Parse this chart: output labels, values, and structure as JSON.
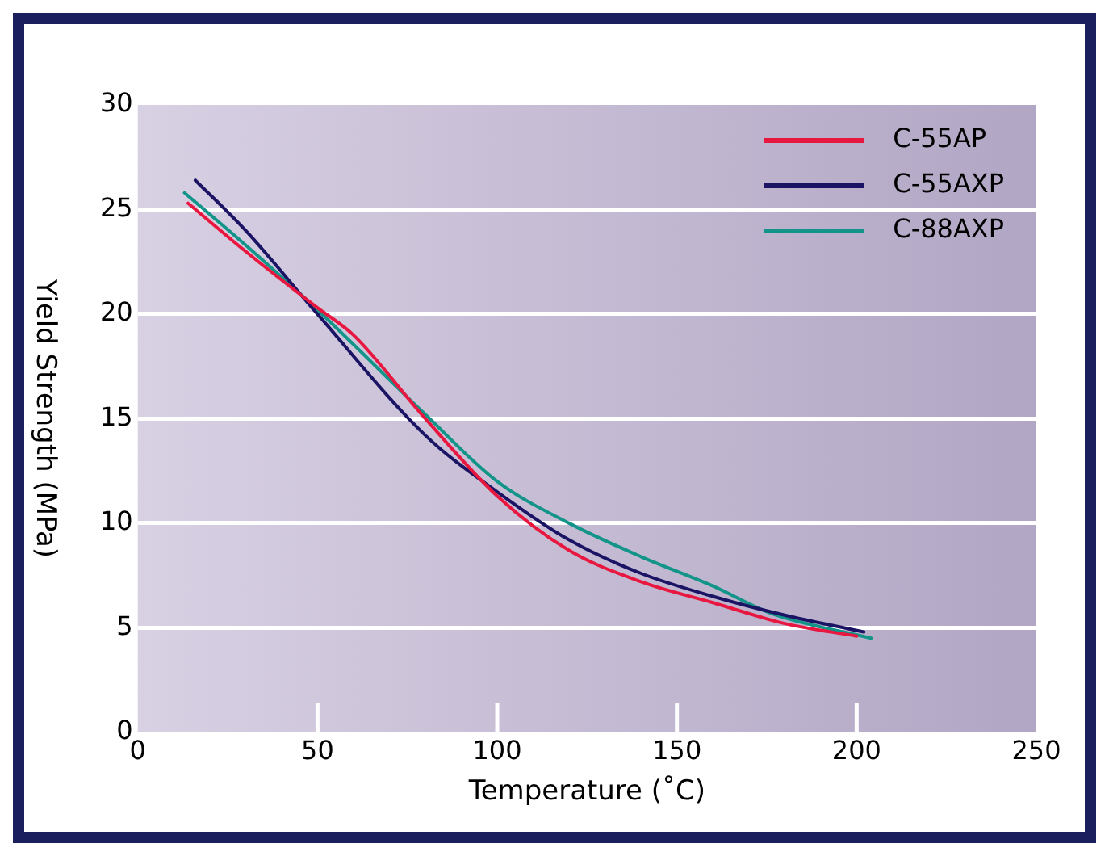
{
  "chart_data": {
    "type": "line",
    "xlabel": "Temperature (˚C)",
    "ylabel": "Yield Strength (MPa)",
    "xlim": [
      0,
      250
    ],
    "xticks": [
      0,
      50,
      100,
      150,
      200,
      250
    ],
    "ylim": [
      0,
      30
    ],
    "yticks": [
      0,
      5,
      10,
      15,
      20,
      25,
      30
    ],
    "grid": "y",
    "legend": "top right",
    "marker": "none",
    "line_style": "solid",
    "series": [
      {
        "name": "C-55AP",
        "color": "#e8173f",
        "x": [
          14,
          30,
          50,
          60,
          80,
          100,
          120,
          140,
          160,
          180,
          200
        ],
        "values": [
          25.3,
          23,
          20.3,
          19,
          15,
          11.3,
          8.7,
          7.2,
          6.2,
          5.2,
          4.6
        ]
      },
      {
        "name": "C-55AXP",
        "color": "#1b1464",
        "x": [
          16,
          30,
          50,
          80,
          100,
          120,
          140,
          160,
          180,
          202
        ],
        "values": [
          26.4,
          24,
          20,
          14.2,
          11.5,
          9.2,
          7.6,
          6.5,
          5.6,
          4.8
        ]
      },
      {
        "name": "C-88AXP",
        "color": "#139488",
        "x": [
          13,
          30,
          50,
          80,
          100,
          120,
          140,
          160,
          176,
          204
        ],
        "values": [
          25.8,
          23.3,
          20.2,
          15.2,
          12,
          10,
          8.4,
          7,
          5.7,
          4.5
        ]
      }
    ]
  }
}
